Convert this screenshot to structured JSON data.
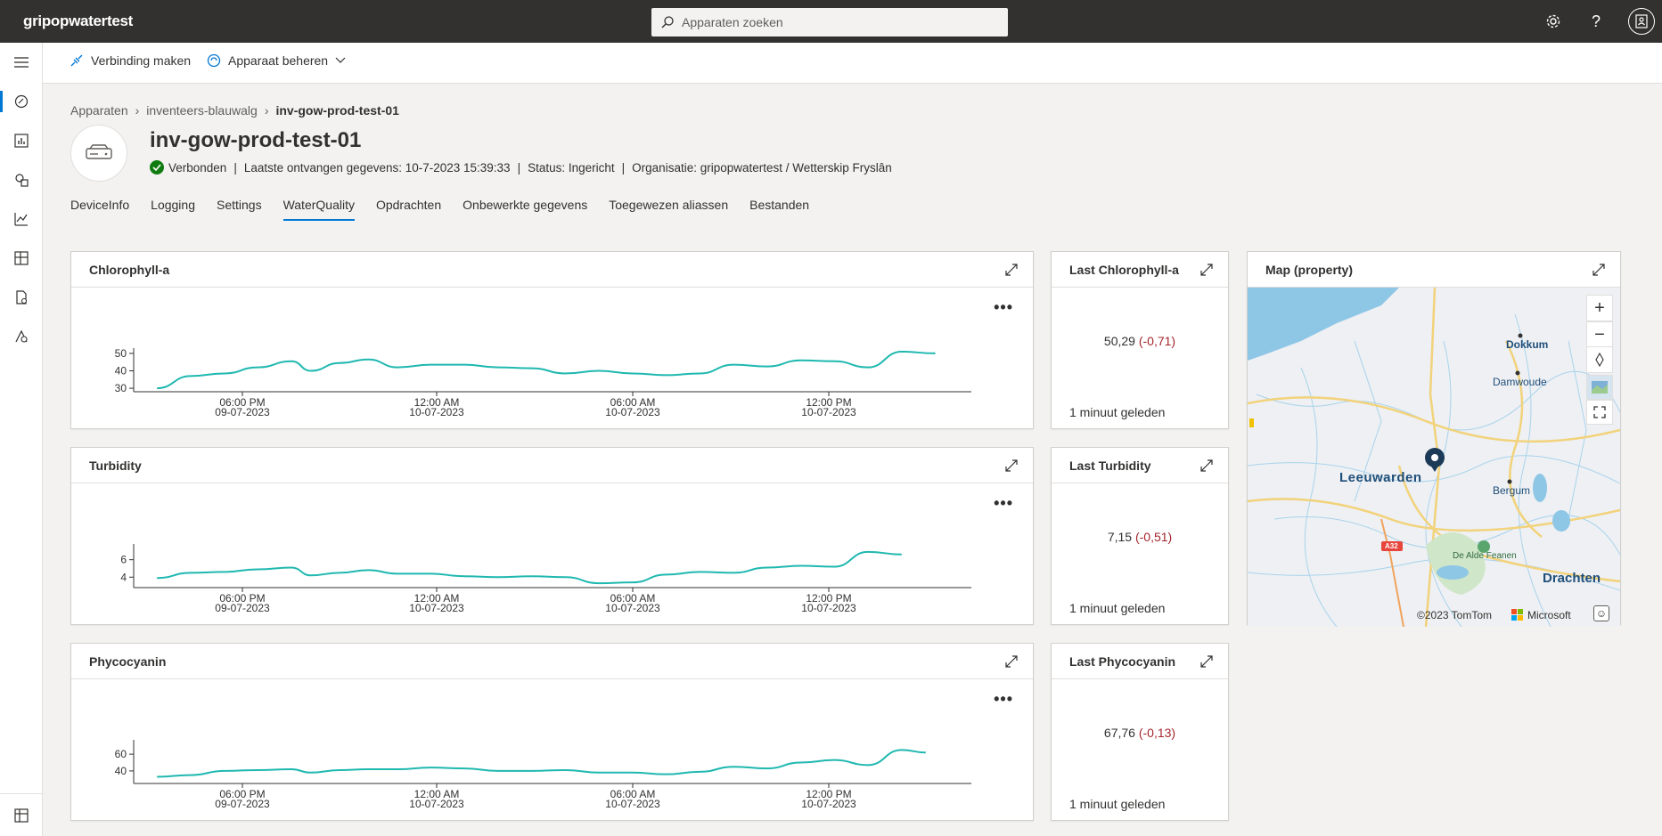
{
  "app": {
    "brand": "gripopwatertest"
  },
  "search": {
    "placeholder": "Apparaten zoeken"
  },
  "commands": {
    "connect": "Verbinding maken",
    "manage": "Apparaat beheren"
  },
  "breadcrumb": {
    "root": "Apparaten",
    "template": "inventeers-blauwalg",
    "device": "inv-gow-prod-test-01"
  },
  "device": {
    "title": "inv-gow-prod-test-01",
    "connection": "Verbonden",
    "last_data": "Laatste ontvangen gegevens: 10-7-2023 15:39:33",
    "status": "Status: Ingericht",
    "organisation": "Organisatie: gripopwatertest / Wetterskip Fryslân"
  },
  "tabs": [
    "DeviceInfo",
    "Logging",
    "Settings",
    "WaterQuality",
    "Opdrachten",
    "Onbewerkte gegevens",
    "Toegewezen aliassen",
    "Bestanden"
  ],
  "x_ticks": [
    {
      "time": "06:00 PM",
      "date": "09-07-2023"
    },
    {
      "time": "12:00 AM",
      "date": "10-07-2023"
    },
    {
      "time": "06:00 AM",
      "date": "10-07-2023"
    },
    {
      "time": "12:00 PM",
      "date": "10-07-2023"
    }
  ],
  "colors": {
    "series": "#1fb8b0",
    "accent": "#0078d4",
    "delta": "#a4262c"
  },
  "tiles": {
    "chl_chart": {
      "title": "Chlorophyll-a"
    },
    "tur_chart": {
      "title": "Turbidity"
    },
    "phy_chart": {
      "title": "Phycocyanin"
    },
    "chl_kpi": {
      "title": "Last Chlorophyll-a",
      "value": "50,29",
      "delta": "(-0,71)",
      "time": "1 minuut geleden"
    },
    "tur_kpi": {
      "title": "Last Turbidity",
      "value": "7,15",
      "delta": "(-0,51)",
      "time": "1 minuut geleden"
    },
    "phy_kpi": {
      "title": "Last Phycocyanin",
      "value": "67,76",
      "delta": "(-0,13)",
      "time": "1 minuut geleden"
    },
    "map": {
      "title": "Map (property)",
      "copyright": "©2023 TomTom",
      "provider": "Microsoft",
      "places": {
        "dokkum": "Dokkum",
        "damwoude": "Damwoude",
        "leeuwarden": "Leeuwarden",
        "bergum": "Bergum",
        "drachten": "Drachten",
        "alde_feanen": "De Alde Feanen",
        "road": "A32"
      }
    }
  },
  "chart_data": [
    {
      "type": "line",
      "title": "Chlorophyll-a",
      "yticks": [
        30,
        40,
        50
      ],
      "ylim": [
        28,
        52
      ],
      "x_hours": [
        0,
        1,
        2,
        3,
        4,
        5,
        6,
        7,
        8,
        9,
        10,
        11,
        12,
        13,
        14,
        15,
        16,
        17,
        18,
        19,
        20,
        21,
        22,
        23,
        24,
        25,
        26,
        27
      ],
      "series": [
        {
          "values": [
            30,
            37,
            38.5,
            42,
            45.5,
            40,
            44.5,
            46.5,
            42,
            43.5,
            43.5,
            42,
            41.5,
            38.5,
            40,
            38.5,
            37.5,
            38.5,
            43.5,
            42.5,
            46,
            45.5,
            42,
            51,
            50
          ]
        }
      ],
      "series_x": [
        0.6,
        2.0,
        3.4,
        4.8,
        6.2,
        7.0,
        8.2,
        9.4,
        10.6,
        12.0,
        13.4,
        14.8,
        16.2,
        17.6,
        19.0,
        20.4,
        21.8,
        23.2,
        24.6,
        26.0,
        27.4,
        28.8,
        30.2,
        31.6,
        33.0
      ]
    },
    {
      "type": "line",
      "title": "Turbidity",
      "yticks": [
        4,
        6
      ],
      "ylim": [
        2.8,
        7.6
      ],
      "series": [
        {
          "values": [
            3.9,
            4.5,
            4.6,
            4.9,
            5.1,
            4.2,
            4.5,
            4.8,
            4.4,
            4.4,
            4.1,
            4.0,
            4.1,
            4.0,
            3.3,
            3.4,
            4.3,
            4.6,
            4.5,
            5.1,
            5.3,
            5.2,
            6.9,
            6.6
          ]
        }
      ],
      "series_x": [
        0.6,
        2.0,
        3.4,
        4.8,
        6.2,
        7.0,
        8.2,
        9.4,
        10.6,
        12.0,
        13.4,
        14.8,
        16.2,
        17.6,
        19.0,
        20.4,
        21.8,
        23.2,
        24.6,
        26.0,
        27.4,
        28.8,
        30.2,
        31.6
      ]
    },
    {
      "type": "line",
      "title": "Phycocyanin",
      "yticks": [
        40,
        60
      ],
      "ylim": [
        25,
        75
      ],
      "series": [
        {
          "values": [
            33,
            35,
            40,
            41,
            42,
            38,
            41,
            42,
            42,
            44,
            43,
            40,
            40,
            41,
            38,
            38,
            36,
            39,
            45,
            43,
            50,
            53,
            47,
            65,
            62
          ]
        }
      ],
      "series_x": [
        0.6,
        2.0,
        3.4,
        4.8,
        6.2,
        7.0,
        8.2,
        9.4,
        10.6,
        12.0,
        13.4,
        14.8,
        16.2,
        17.6,
        19.0,
        20.4,
        21.8,
        23.2,
        24.6,
        26.0,
        27.4,
        28.8,
        30.2,
        31.6,
        32.6
      ]
    }
  ]
}
